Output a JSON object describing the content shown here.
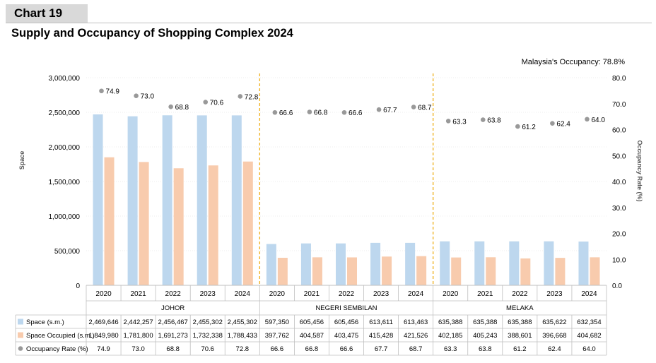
{
  "header": {
    "chart_number": "Chart 19",
    "title": "Supply and Occupancy of Shopping Complex 2024"
  },
  "colors": {
    "space": "#bdd7ee",
    "occupied": "#f8cbad",
    "occupancy_marker": "#999999",
    "divider": "#f0b429",
    "grid": "#d9d9d9"
  },
  "chart_data": {
    "type": "bar",
    "annotation": "Malaysia's Occupancy: 78.8%",
    "ylabel": "Space",
    "y2label": "Occupancy Rate (%)",
    "ylim": [
      0,
      3000000
    ],
    "yticks": [
      "0",
      "500,000",
      "1,000,000",
      "1,500,000",
      "2,000,000",
      "2,500,000",
      "3,000,000"
    ],
    "y2lim": [
      0,
      80
    ],
    "y2ticks": [
      "0.0",
      "10.0",
      "20.0",
      "30.0",
      "40.0",
      "50.0",
      "60.0",
      "70.0",
      "80.0"
    ],
    "groups": [
      "JOHOR",
      "NEGERI SEMBILAN",
      "MELAKA"
    ],
    "years": [
      "2020",
      "2021",
      "2022",
      "2023",
      "2024"
    ],
    "series": [
      {
        "name": "Space (s.m.)",
        "values": [
          2469646,
          2442257,
          2456467,
          2455302,
          2455302,
          597350,
          605456,
          605456,
          613611,
          613463,
          635388,
          635388,
          635388,
          635622,
          632354
        ],
        "labels": [
          "2,469,646",
          "2,442,257",
          "2,456,467",
          "2,455,302",
          "2,455,302",
          "597,350",
          "605,456",
          "605,456",
          "613,611",
          "613,463",
          "635,388",
          "635,388",
          "635,388",
          "635,622",
          "632,354"
        ]
      },
      {
        "name": "Space Occupied (s.m.)",
        "values": [
          1849980,
          1781800,
          1691273,
          1732338,
          1788433,
          397762,
          404587,
          403475,
          415428,
          421526,
          402185,
          405243,
          388601,
          396668,
          404682
        ],
        "labels": [
          "1,849,980",
          "1,781,800",
          "1,691,273",
          "1,732,338",
          "1,788,433",
          "397,762",
          "404,587",
          "403,475",
          "415,428",
          "421,526",
          "402,185",
          "405,243",
          "388,601",
          "396,668",
          "404,682"
        ]
      },
      {
        "name": "Occupancy Rate (%)",
        "values": [
          74.9,
          73.0,
          68.8,
          70.6,
          72.8,
          66.6,
          66.8,
          66.6,
          67.7,
          68.7,
          63.3,
          63.8,
          61.2,
          62.4,
          64.0
        ],
        "labels": [
          "74.9",
          "73.0",
          "68.8",
          "70.6",
          "72.8",
          "66.6",
          "66.8",
          "66.6",
          "67.7",
          "68.7",
          "63.3",
          "63.8",
          "61.2",
          "62.4",
          "64.0"
        ]
      }
    ]
  }
}
